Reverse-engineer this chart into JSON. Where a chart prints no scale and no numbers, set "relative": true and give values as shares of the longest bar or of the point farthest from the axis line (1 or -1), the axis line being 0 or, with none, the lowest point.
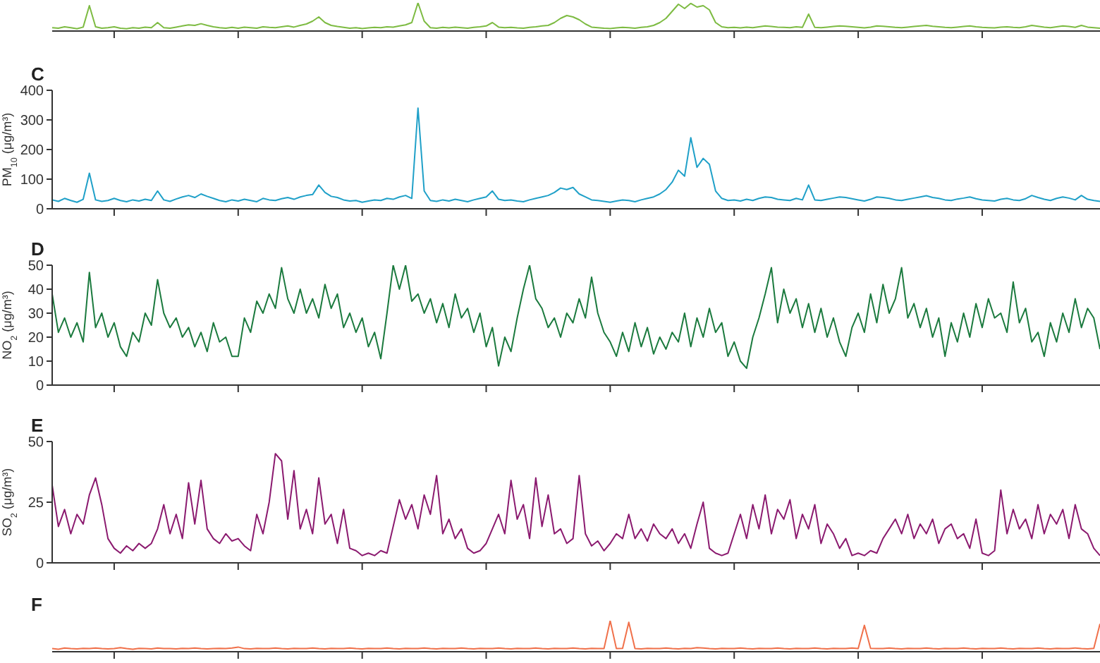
{
  "chart_data": [
    {
      "type": "line",
      "relative": true,
      "categories": [
        null,
        null,
        null,
        null,
        null,
        null,
        null,
        null,
        null,
        null,
        null,
        null,
        null,
        null,
        null,
        null,
        null,
        null,
        null,
        null,
        null,
        null,
        null,
        null,
        null,
        null,
        null,
        null,
        null,
        null,
        null,
        null,
        null,
        null,
        null,
        null,
        null,
        null,
        null,
        null,
        null,
        null,
        null,
        null,
        null,
        null,
        null,
        null,
        null,
        null,
        null,
        null,
        null,
        null,
        null,
        null,
        null,
        null,
        null,
        null,
        null,
        null,
        null,
        null,
        null,
        null,
        null,
        null,
        null,
        null,
        null,
        null,
        null,
        null,
        null,
        null,
        null,
        null,
        null,
        null,
        null,
        null,
        null,
        null,
        null,
        null,
        null,
        null,
        null,
        null,
        null,
        null,
        null,
        null,
        null,
        null,
        null,
        null,
        null,
        null,
        null,
        null,
        null,
        null,
        null,
        null,
        null,
        null,
        null,
        null,
        null,
        null,
        null,
        null,
        null,
        null,
        null,
        null,
        null,
        null,
        null,
        null,
        null,
        null,
        null,
        null,
        null,
        null,
        null,
        null,
        null,
        null,
        null,
        null,
        null,
        null,
        null,
        null,
        null,
        null,
        null,
        null,
        null,
        null,
        null,
        null,
        null,
        null,
        null,
        null,
        null,
        null,
        null,
        null,
        null,
        null,
        null,
        null,
        null,
        null,
        null,
        null,
        null,
        null,
        null,
        null,
        null,
        null,
        null,
        null
      ],
      "series": [
        {
          "color": "#7dbb42",
          "values": [
            0.12,
            0.1,
            0.15,
            0.12,
            0.08,
            0.14,
            0.9,
            0.15,
            0.1,
            0.12,
            0.15,
            0.1,
            0.08,
            0.12,
            0.1,
            0.14,
            0.12,
            0.3,
            0.12,
            0.1,
            0.14,
            0.18,
            0.22,
            0.2,
            0.26,
            0.2,
            0.15,
            0.12,
            0.1,
            0.13,
            0.1,
            0.14,
            0.12,
            0.1,
            0.15,
            0.13,
            0.12,
            0.15,
            0.18,
            0.14,
            0.2,
            0.25,
            0.35,
            0.5,
            0.3,
            0.2,
            0.16,
            0.13,
            0.1,
            0.12,
            0.09,
            0.11,
            0.13,
            0.12,
            0.15,
            0.14,
            0.18,
            0.22,
            0.3,
            1,
            0.35,
            0.12,
            0.1,
            0.13,
            0.11,
            0.14,
            0.12,
            0.1,
            0.13,
            0.15,
            0.18,
            0.3,
            0.14,
            0.12,
            0.13,
            0.11,
            0.1,
            0.13,
            0.15,
            0.18,
            0.2,
            0.3,
            0.45,
            0.55,
            0.5,
            0.4,
            0.25,
            0.14,
            0.12,
            0.1,
            0.09,
            0.11,
            0.13,
            0.12,
            0.1,
            0.13,
            0.15,
            0.2,
            0.3,
            0.45,
            0.7,
            0.95,
            0.8,
            0.98,
            0.85,
            0.9,
            0.75,
            0.3,
            0.15,
            0.12,
            0.13,
            0.11,
            0.14,
            0.12,
            0.15,
            0.18,
            0.16,
            0.14,
            0.13,
            0.12,
            0.15,
            0.13,
            0.6,
            0.13,
            0.12,
            0.14,
            0.16,
            0.18,
            0.17,
            0.15,
            0.13,
            0.11,
            0.14,
            0.18,
            0.17,
            0.15,
            0.13,
            0.12,
            0.14,
            0.16,
            0.18,
            0.2,
            0.17,
            0.15,
            0.13,
            0.12,
            0.14,
            0.16,
            0.18,
            0.15,
            0.13,
            0.12,
            0.11,
            0.14,
            0.15,
            0.13,
            0.12,
            0.15,
            0.2,
            0.17,
            0.14,
            0.12,
            0.15,
            0.18,
            0.16,
            0.13,
            0.2,
            0.14,
            0.12,
            0.1
          ]
        }
      ]
    },
    {
      "type": "line",
      "title": "C",
      "ylabel": "PM$_{10}$ (μg/m³)",
      "ylim": [
        0,
        400
      ],
      "yticks": [
        0,
        100,
        200,
        300,
        400
      ],
      "categories": [
        null,
        null,
        null,
        null,
        null,
        null,
        null,
        null,
        null,
        null,
        null,
        null,
        null,
        null,
        null,
        null,
        null,
        null,
        null,
        null,
        null,
        null,
        null,
        null,
        null,
        null,
        null,
        null,
        null,
        null,
        null,
        null,
        null,
        null,
        null,
        null,
        null,
        null,
        null,
        null,
        null,
        null,
        null,
        null,
        null,
        null,
        null,
        null,
        null,
        null,
        null,
        null,
        null,
        null,
        null,
        null,
        null,
        null,
        null,
        null,
        null,
        null,
        null,
        null,
        null,
        null,
        null,
        null,
        null,
        null,
        null,
        null,
        null,
        null,
        null,
        null,
        null,
        null,
        null,
        null,
        null,
        null,
        null,
        null,
        null,
        null,
        null,
        null,
        null,
        null,
        null,
        null,
        null,
        null,
        null,
        null,
        null,
        null,
        null,
        null,
        null,
        null,
        null,
        null,
        null,
        null,
        null,
        null,
        null,
        null,
        null,
        null,
        null,
        null,
        null,
        null,
        null,
        null,
        null,
        null,
        null,
        null,
        null,
        null,
        null,
        null,
        null,
        null,
        null,
        null,
        null,
        null,
        null,
        null,
        null,
        null,
        null,
        null,
        null,
        null,
        null,
        null,
        null,
        null,
        null,
        null,
        null,
        null,
        null,
        null,
        null,
        null,
        null,
        null,
        null,
        null,
        null,
        null,
        null,
        null,
        null,
        null,
        null,
        null,
        null,
        null,
        null,
        null,
        null,
        null
      ],
      "series": [
        {
          "color": "#1fa0c8",
          "values": [
            30,
            25,
            35,
            28,
            22,
            32,
            120,
            30,
            25,
            28,
            35,
            28,
            24,
            30,
            26,
            32,
            28,
            60,
            30,
            25,
            33,
            40,
            45,
            38,
            50,
            42,
            35,
            28,
            24,
            30,
            26,
            32,
            28,
            24,
            35,
            30,
            28,
            34,
            38,
            32,
            40,
            45,
            48,
            80,
            55,
            42,
            38,
            30,
            26,
            28,
            22,
            26,
            30,
            28,
            35,
            32,
            40,
            45,
            35,
            340,
            60,
            28,
            25,
            30,
            26,
            32,
            28,
            24,
            30,
            35,
            40,
            60,
            32,
            28,
            30,
            26,
            24,
            30,
            35,
            40,
            45,
            55,
            70,
            65,
            72,
            50,
            40,
            30,
            28,
            25,
            22,
            26,
            30,
            28,
            24,
            30,
            35,
            40,
            50,
            65,
            90,
            130,
            110,
            240,
            140,
            170,
            150,
            60,
            35,
            28,
            30,
            26,
            32,
            28,
            35,
            40,
            38,
            32,
            30,
            28,
            35,
            30,
            80,
            30,
            28,
            32,
            36,
            40,
            38,
            34,
            30,
            26,
            32,
            40,
            38,
            35,
            30,
            28,
            32,
            36,
            40,
            44,
            38,
            35,
            30,
            28,
            33,
            36,
            40,
            34,
            30,
            28,
            26,
            32,
            35,
            30,
            28,
            34,
            45,
            38,
            32,
            28,
            35,
            40,
            36,
            30,
            45,
            32,
            28,
            25
          ]
        }
      ]
    },
    {
      "type": "line",
      "title": "D",
      "ylabel": "NO$_{2}$ (μg/m³)",
      "ylim": [
        0,
        50
      ],
      "yticks": [
        0,
        10,
        20,
        30,
        40,
        50
      ],
      "categories": [
        null,
        null,
        null,
        null,
        null,
        null,
        null,
        null,
        null,
        null,
        null,
        null,
        null,
        null,
        null,
        null,
        null,
        null,
        null,
        null,
        null,
        null,
        null,
        null,
        null,
        null,
        null,
        null,
        null,
        null,
        null,
        null,
        null,
        null,
        null,
        null,
        null,
        null,
        null,
        null,
        null,
        null,
        null,
        null,
        null,
        null,
        null,
        null,
        null,
        null,
        null,
        null,
        null,
        null,
        null,
        null,
        null,
        null,
        null,
        null,
        null,
        null,
        null,
        null,
        null,
        null,
        null,
        null,
        null,
        null,
        null,
        null,
        null,
        null,
        null,
        null,
        null,
        null,
        null,
        null,
        null,
        null,
        null,
        null,
        null,
        null,
        null,
        null,
        null,
        null,
        null,
        null,
        null,
        null,
        null,
        null,
        null,
        null,
        null,
        null,
        null,
        null,
        null,
        null,
        null,
        null,
        null,
        null,
        null,
        null,
        null,
        null,
        null,
        null,
        null,
        null,
        null,
        null,
        null,
        null,
        null,
        null,
        null,
        null,
        null,
        null,
        null,
        null,
        null,
        null,
        null,
        null,
        null,
        null,
        null,
        null,
        null,
        null,
        null,
        null,
        null,
        null,
        null,
        null,
        null,
        null,
        null,
        null,
        null,
        null,
        null,
        null,
        null,
        null,
        null,
        null,
        null,
        null,
        null,
        null,
        null,
        null,
        null,
        null,
        null,
        null,
        null,
        null,
        null,
        null
      ],
      "series": [
        {
          "color": "#1b7a3e",
          "values": [
            38,
            22,
            28,
            20,
            26,
            18,
            47,
            24,
            30,
            20,
            26,
            16,
            12,
            22,
            18,
            30,
            25,
            44,
            30,
            24,
            28,
            20,
            24,
            16,
            22,
            14,
            26,
            18,
            20,
            12,
            12,
            28,
            22,
            35,
            30,
            38,
            32,
            49,
            36,
            30,
            40,
            30,
            36,
            28,
            42,
            32,
            38,
            24,
            30,
            22,
            28,
            16,
            22,
            11,
            30,
            50,
            40,
            50,
            35,
            38,
            30,
            36,
            26,
            34,
            24,
            38,
            28,
            32,
            22,
            30,
            16,
            24,
            8,
            20,
            14,
            28,
            40,
            50,
            36,
            32,
            24,
            28,
            20,
            30,
            26,
            36,
            28,
            45,
            30,
            22,
            18,
            12,
            22,
            14,
            26,
            16,
            24,
            13,
            20,
            15,
            22,
            18,
            30,
            16,
            28,
            20,
            32,
            22,
            26,
            12,
            18,
            10,
            7,
            20,
            28,
            38,
            49,
            26,
            40,
            30,
            36,
            24,
            34,
            22,
            32,
            20,
            28,
            18,
            12,
            24,
            30,
            22,
            38,
            26,
            42,
            30,
            36,
            49,
            28,
            34,
            24,
            32,
            20,
            28,
            12,
            26,
            18,
            30,
            20,
            34,
            24,
            36,
            28,
            30,
            22,
            43,
            26,
            32,
            18,
            22,
            12,
            26,
            18,
            30,
            22,
            36,
            24,
            32,
            28,
            15
          ]
        }
      ]
    },
    {
      "type": "line",
      "title": "E",
      "ylabel": "SO$_{2}$ (μg/m³)",
      "ylim": [
        0,
        50
      ],
      "yticks": [
        0,
        25,
        50
      ],
      "categories": [
        null,
        null,
        null,
        null,
        null,
        null,
        null,
        null,
        null,
        null,
        null,
        null,
        null,
        null,
        null,
        null,
        null,
        null,
        null,
        null,
        null,
        null,
        null,
        null,
        null,
        null,
        null,
        null,
        null,
        null,
        null,
        null,
        null,
        null,
        null,
        null,
        null,
        null,
        null,
        null,
        null,
        null,
        null,
        null,
        null,
        null,
        null,
        null,
        null,
        null,
        null,
        null,
        null,
        null,
        null,
        null,
        null,
        null,
        null,
        null,
        null,
        null,
        null,
        null,
        null,
        null,
        null,
        null,
        null,
        null,
        null,
        null,
        null,
        null,
        null,
        null,
        null,
        null,
        null,
        null,
        null,
        null,
        null,
        null,
        null,
        null,
        null,
        null,
        null,
        null,
        null,
        null,
        null,
        null,
        null,
        null,
        null,
        null,
        null,
        null,
        null,
        null,
        null,
        null,
        null,
        null,
        null,
        null,
        null,
        null,
        null,
        null,
        null,
        null,
        null,
        null,
        null,
        null,
        null,
        null,
        null,
        null,
        null,
        null,
        null,
        null,
        null,
        null,
        null,
        null,
        null,
        null,
        null,
        null,
        null,
        null,
        null,
        null,
        null,
        null,
        null,
        null,
        null,
        null,
        null,
        null,
        null,
        null,
        null,
        null,
        null,
        null,
        null,
        null,
        null,
        null,
        null,
        null,
        null,
        null,
        null,
        null,
        null,
        null,
        null,
        null,
        null,
        null,
        null,
        null
      ],
      "series": [
        {
          "color": "#8b1a6f",
          "values": [
            32,
            15,
            22,
            12,
            20,
            16,
            28,
            35,
            24,
            10,
            6,
            4,
            7,
            5,
            8,
            6,
            8,
            14,
            24,
            12,
            20,
            10,
            33,
            16,
            34,
            14,
            10,
            8,
            12,
            9,
            10,
            7,
            5,
            20,
            12,
            25,
            45,
            42,
            18,
            38,
            14,
            22,
            12,
            35,
            16,
            20,
            8,
            22,
            6,
            5,
            3,
            4,
            3,
            5,
            4,
            15,
            26,
            18,
            24,
            14,
            28,
            20,
            36,
            12,
            18,
            10,
            14,
            6,
            4,
            5,
            8,
            14,
            20,
            12,
            34,
            18,
            24,
            10,
            35,
            15,
            28,
            12,
            14,
            8,
            10,
            36,
            12,
            7,
            9,
            5,
            8,
            12,
            10,
            20,
            10,
            14,
            9,
            16,
            12,
            10,
            14,
            8,
            12,
            6,
            16,
            25,
            6,
            4,
            3,
            4,
            12,
            20,
            10,
            24,
            14,
            28,
            12,
            22,
            18,
            26,
            10,
            20,
            14,
            24,
            8,
            16,
            12,
            6,
            10,
            3,
            4,
            3,
            5,
            4,
            10,
            14,
            18,
            12,
            20,
            10,
            16,
            12,
            18,
            8,
            14,
            16,
            10,
            12,
            6,
            18,
            4,
            3,
            5,
            30,
            12,
            22,
            14,
            18,
            10,
            24,
            12,
            20,
            16,
            22,
            10,
            24,
            14,
            12,
            6,
            3
          ]
        }
      ]
    },
    {
      "type": "line",
      "title": "F",
      "relative": true,
      "categories": [
        null,
        null,
        null,
        null,
        null,
        null,
        null,
        null,
        null,
        null,
        null,
        null,
        null,
        null,
        null,
        null,
        null,
        null,
        null,
        null,
        null,
        null,
        null,
        null,
        null,
        null,
        null,
        null,
        null,
        null,
        null,
        null,
        null,
        null,
        null,
        null,
        null,
        null,
        null,
        null,
        null,
        null,
        null,
        null,
        null,
        null,
        null,
        null,
        null,
        null,
        null,
        null,
        null,
        null,
        null,
        null,
        null,
        null,
        null,
        null,
        null,
        null,
        null,
        null,
        null,
        null,
        null,
        null,
        null,
        null,
        null,
        null,
        null,
        null,
        null,
        null,
        null,
        null,
        null,
        null,
        null,
        null,
        null,
        null,
        null,
        null,
        null,
        null,
        null,
        null,
        null,
        null,
        null,
        null,
        null,
        null,
        null,
        null,
        null,
        null,
        null,
        null,
        null,
        null,
        null,
        null,
        null,
        null,
        null,
        null,
        null,
        null,
        null,
        null,
        null,
        null,
        null,
        null,
        null,
        null,
        null,
        null,
        null,
        null,
        null,
        null,
        null,
        null,
        null,
        null,
        null,
        null,
        null,
        null,
        null,
        null,
        null,
        null,
        null,
        null,
        null,
        null,
        null,
        null,
        null,
        null,
        null,
        null,
        null,
        null,
        null,
        null,
        null,
        null,
        null,
        null,
        null,
        null,
        null,
        null,
        null,
        null,
        null,
        null,
        null,
        null,
        null,
        null,
        null,
        null
      ],
      "series": [
        {
          "color": "#f0704a",
          "values": [
            0.1,
            0.08,
            0.12,
            0.1,
            0.09,
            0.11,
            0.1,
            0.12,
            0.1,
            0.09,
            0.1,
            0.13,
            0.1,
            0.08,
            0.11,
            0.1,
            0.09,
            0.12,
            0.1,
            0.1,
            0.09,
            0.11,
            0.1,
            0.12,
            0.1,
            0.09,
            0.1,
            0.11,
            0.1,
            0.12,
            0.15,
            0.1,
            0.09,
            0.11,
            0.1,
            0.1,
            0.12,
            0.1,
            0.09,
            0.11,
            0.1,
            0.1,
            0.12,
            0.1,
            0.09,
            0.11,
            0.1,
            0.1,
            0.12,
            0.1,
            0.09,
            0.11,
            0.1,
            0.1,
            0.12,
            0.1,
            0.09,
            0.11,
            0.1,
            0.1,
            0.12,
            0.1,
            0.09,
            0.11,
            0.1,
            0.1,
            0.12,
            0.1,
            0.09,
            0.11,
            0.1,
            0.1,
            0.12,
            0.1,
            0.09,
            0.11,
            0.1,
            0.1,
            0.12,
            0.1,
            0.09,
            0.11,
            0.1,
            0.1,
            0.12,
            0.1,
            0.09,
            0.11,
            0.1,
            0.1,
            1,
            0.1,
            0.11,
            0.95,
            0.1,
            0.09,
            0.11,
            0.1,
            0.1,
            0.12,
            0.1,
            0.09,
            0.11,
            0.1,
            0.13,
            0.12,
            0.1,
            0.09,
            0.11,
            0.1,
            0.1,
            0.12,
            0.1,
            0.09,
            0.11,
            0.1,
            0.1,
            0.12,
            0.1,
            0.09,
            0.11,
            0.1,
            0.1,
            0.12,
            0.1,
            0.09,
            0.11,
            0.1,
            0.1,
            0.12,
            0.1,
            0.85,
            0.11,
            0.1,
            0.1,
            0.12,
            0.1,
            0.09,
            0.11,
            0.1,
            0.1,
            0.12,
            0.1,
            0.09,
            0.11,
            0.1,
            0.1,
            0.12,
            0.1,
            0.09,
            0.11,
            0.1,
            0.1,
            0.12,
            0.1,
            0.09,
            0.11,
            0.1,
            0.1,
            0.12,
            0.1,
            0.09,
            0.11,
            0.1,
            0.1,
            0.12,
            0.1,
            0.09,
            0.11,
            0.9
          ]
        }
      ]
    }
  ]
}
